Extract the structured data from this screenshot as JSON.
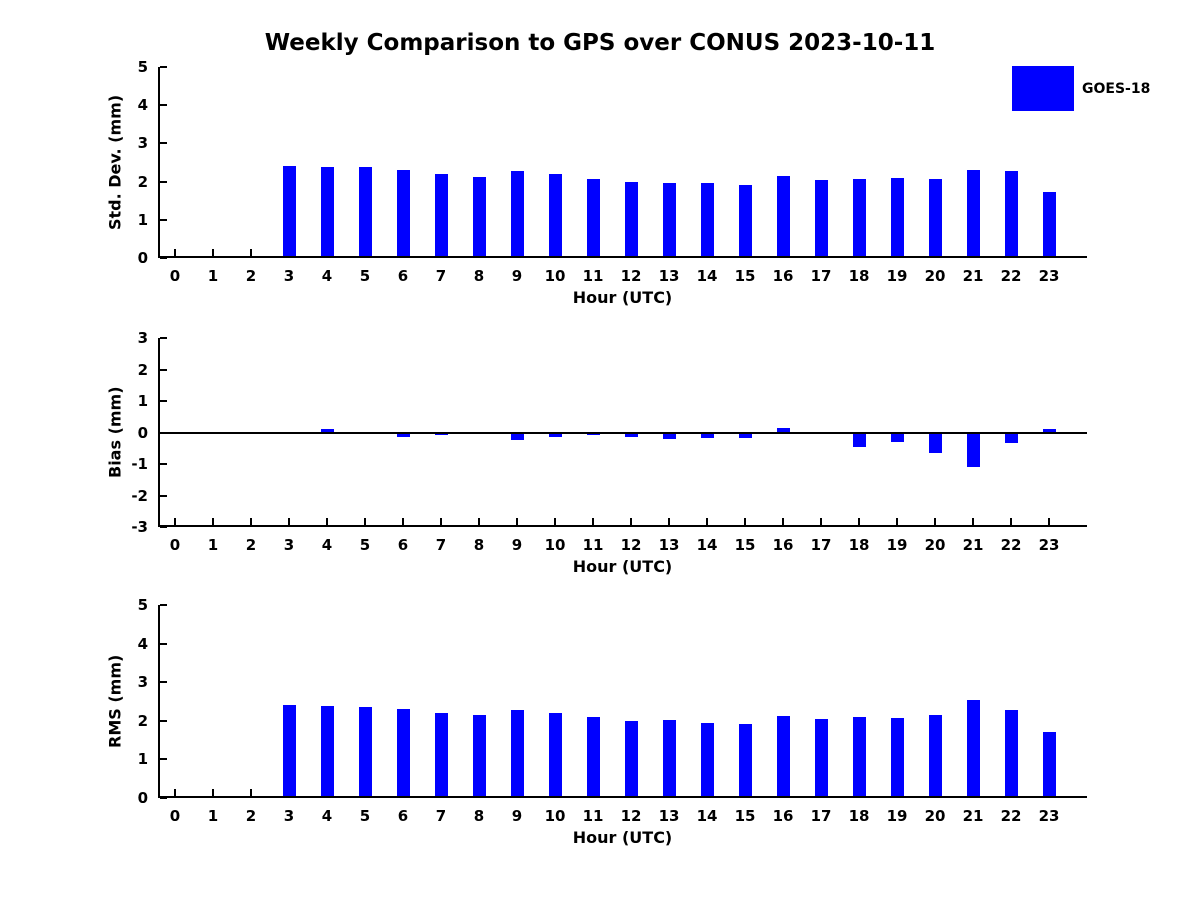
{
  "title": "Weekly Comparison to GPS over CONUS 2023-10-11",
  "legend": {
    "label": "GOES-18",
    "color": "#0000FF"
  },
  "chart_data": {
    "type": "bar",
    "x": [
      0,
      1,
      2,
      3,
      4,
      5,
      6,
      7,
      8,
      9,
      10,
      11,
      12,
      13,
      14,
      15,
      16,
      17,
      18,
      19,
      20,
      21,
      22,
      23
    ],
    "xlabel": "Hour (UTC)",
    "bar_color": "#0000FF",
    "background": "#FFFFFF",
    "grid": false,
    "legend_position": "upper-right-outside",
    "subplots": [
      {
        "ylabel": "Std. Dev. (mm)",
        "ylim": [
          0,
          5
        ],
        "yticks": [
          0,
          1,
          2,
          3,
          4,
          5
        ],
        "series": [
          {
            "name": "GOES-18",
            "values": [
              0,
              0,
              0,
              2.4,
              2.37,
              2.37,
              2.3,
              2.21,
              2.13,
              2.27,
              2.2,
              2.08,
              1.98,
              1.97,
              1.96,
              1.92,
              2.14,
              2.03,
              2.06,
              2.09,
              2.06,
              2.3,
              2.27,
              1.72
            ]
          }
        ]
      },
      {
        "ylabel": "Bias (mm)",
        "ylim": [
          -3,
          3
        ],
        "yticks": [
          3,
          2,
          1,
          0,
          -1,
          -2,
          -3
        ],
        "series": [
          {
            "name": "GOES-18",
            "values": [
              0,
              0,
              0,
              0,
              0.1,
              0,
              -0.13,
              -0.08,
              -0.06,
              -0.23,
              -0.15,
              -0.08,
              -0.14,
              -0.21,
              -0.16,
              -0.18,
              0.13,
              -0.04,
              -0.47,
              -0.29,
              -0.64,
              -1.09,
              -0.33,
              0.12
            ]
          }
        ]
      },
      {
        "ylabel": "RMS (mm)",
        "ylim": [
          0,
          5
        ],
        "yticks": [
          0,
          1,
          2,
          3,
          4,
          5
        ],
        "series": [
          {
            "name": "GOES-18",
            "values": [
              0,
              0,
              0,
              2.41,
              2.38,
              2.36,
              2.3,
              2.2,
              2.15,
              2.27,
              2.2,
              2.09,
              2.0,
              2.01,
              1.95,
              1.93,
              2.12,
              2.04,
              2.11,
              2.08,
              2.15,
              2.53,
              2.27,
              1.72
            ]
          }
        ]
      }
    ]
  }
}
